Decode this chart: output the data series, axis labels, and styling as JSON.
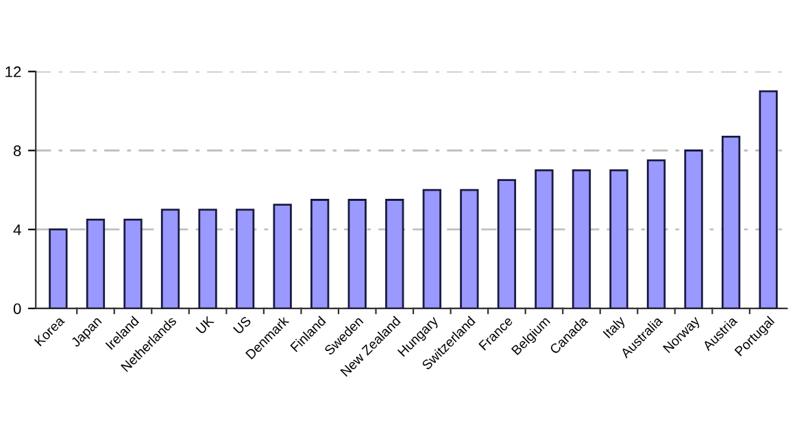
{
  "chart_data": {
    "type": "bar",
    "categories": [
      "Korea",
      "Japan",
      "Ireland",
      "Netherlands",
      "UK",
      "US",
      "Denmark",
      "Finland",
      "Sweden",
      "New Zealand",
      "Hungary",
      "Switzerland",
      "France",
      "Belgium",
      "Canada",
      "Italy",
      "Australia",
      "Norway",
      "Austria",
      "Portugal"
    ],
    "values": [
      4,
      4.5,
      4.5,
      5,
      5,
      5,
      5.25,
      5.5,
      5.5,
      5.5,
      6,
      6,
      6.5,
      7,
      7,
      7,
      7.5,
      8,
      8.7,
      11
    ],
    "color": "#9999ff",
    "ylim": [
      0,
      12
    ],
    "yticks": [
      0,
      4,
      8,
      12
    ],
    "grid": "y"
  }
}
